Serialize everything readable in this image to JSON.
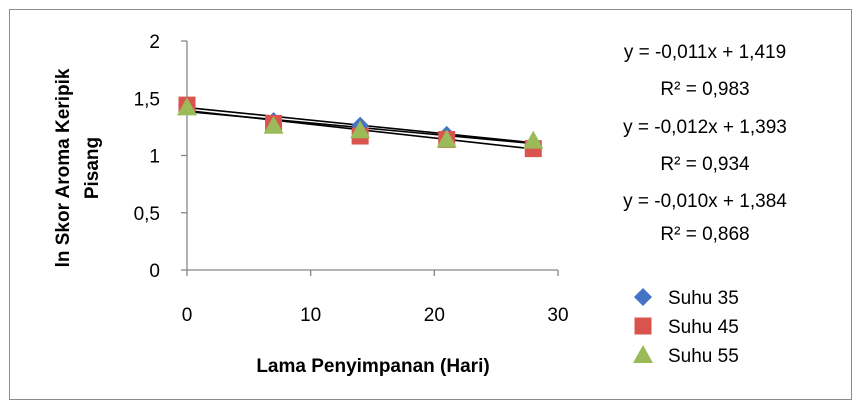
{
  "chart_data": {
    "type": "scatter",
    "xlabel": "Lama Penyimpanan (Hari)",
    "ylabel_lines": [
      "ln Skor Aroma Keripik",
      "Pisang"
    ],
    "xlim": [
      0,
      30
    ],
    "ylim": [
      0,
      2
    ],
    "x_ticks": [
      0,
      10,
      20,
      30
    ],
    "x_tick_labels": [
      "0",
      "10",
      "20",
      "30"
    ],
    "y_ticks": [
      0,
      0.5,
      1,
      1.5,
      2
    ],
    "y_tick_labels": [
      "0",
      "0,5",
      "1",
      "1,5",
      "2"
    ],
    "grid": false,
    "legend_position": "right",
    "series": [
      {
        "name": "Suhu 35",
        "marker": "diamond",
        "color": "#4472C4",
        "x": [
          0,
          7,
          14,
          21,
          28
        ],
        "y": [
          1.44,
          1.3,
          1.26,
          1.18,
          1.09
        ],
        "trendline": {
          "slope": -0.011,
          "intercept": 1.419
        }
      },
      {
        "name": "Suhu 45",
        "marker": "square",
        "color": "#D9534F",
        "x": [
          0,
          7,
          14,
          21,
          28
        ],
        "y": [
          1.44,
          1.28,
          1.17,
          1.14,
          1.06
        ],
        "trendline": {
          "slope": -0.012,
          "intercept": 1.393
        }
      },
      {
        "name": "Suhu 55",
        "marker": "triangle",
        "color": "#9BBB59",
        "x": [
          0,
          7,
          14,
          21,
          28
        ],
        "y": [
          1.42,
          1.26,
          1.22,
          1.14,
          1.13
        ],
        "trendline": {
          "slope": -0.01,
          "intercept": 1.384
        }
      }
    ],
    "equations": [
      {
        "equation": "y = -0,011x + 1,419",
        "r2": "R² = 0,983"
      },
      {
        "equation": "y = -0,012x + 1,393",
        "r2": "R² = 0,934"
      },
      {
        "equation": "y = -0,010x + 1,384",
        "r2": "R² = 0,868"
      }
    ]
  }
}
